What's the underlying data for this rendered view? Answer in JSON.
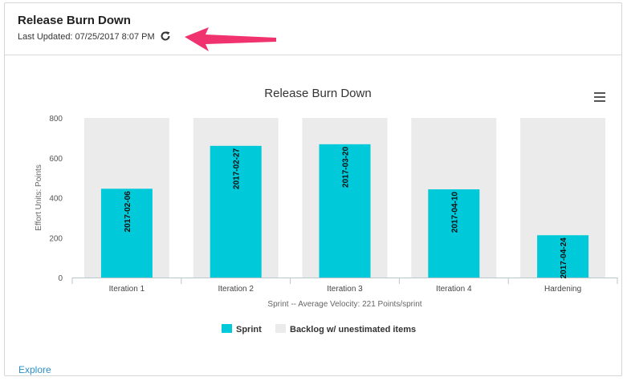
{
  "header": {
    "title": "Release Burn Down",
    "last_updated": "Last Updated: 07/25/2017 8:07 PM",
    "refresh_icon": "refresh-icon"
  },
  "footer": {
    "explore_label": "Explore"
  },
  "colors": {
    "sprint": "#00c9d9",
    "backlog": "#ebebeb",
    "annotation_arrow": "#f0326e"
  },
  "chart_data": {
    "type": "bar",
    "title": "Release Burn Down",
    "xlabel": "Sprint -- Average Velocity: 221 Points/sprint",
    "ylabel": "Effort Units: Points",
    "ylim": [
      0,
      800
    ],
    "yticks": [
      0,
      200,
      400,
      600,
      800
    ],
    "categories": [
      "Iteration 1",
      "Iteration 2",
      "Iteration 3",
      "Iteration 4",
      "Hardening"
    ],
    "series": [
      {
        "name": "Sprint",
        "values": [
          445,
          660,
          668,
          442,
          212
        ]
      },
      {
        "name": "Backlog w/ unestimated items",
        "values": [
          800,
          800,
          800,
          800,
          800
        ]
      }
    ],
    "data_labels": [
      "2017-02-06",
      "2017-02-27",
      "2017-03-20",
      "2017-04-10",
      "2017-04-24"
    ],
    "legend_position": "bottom",
    "grid": false
  }
}
